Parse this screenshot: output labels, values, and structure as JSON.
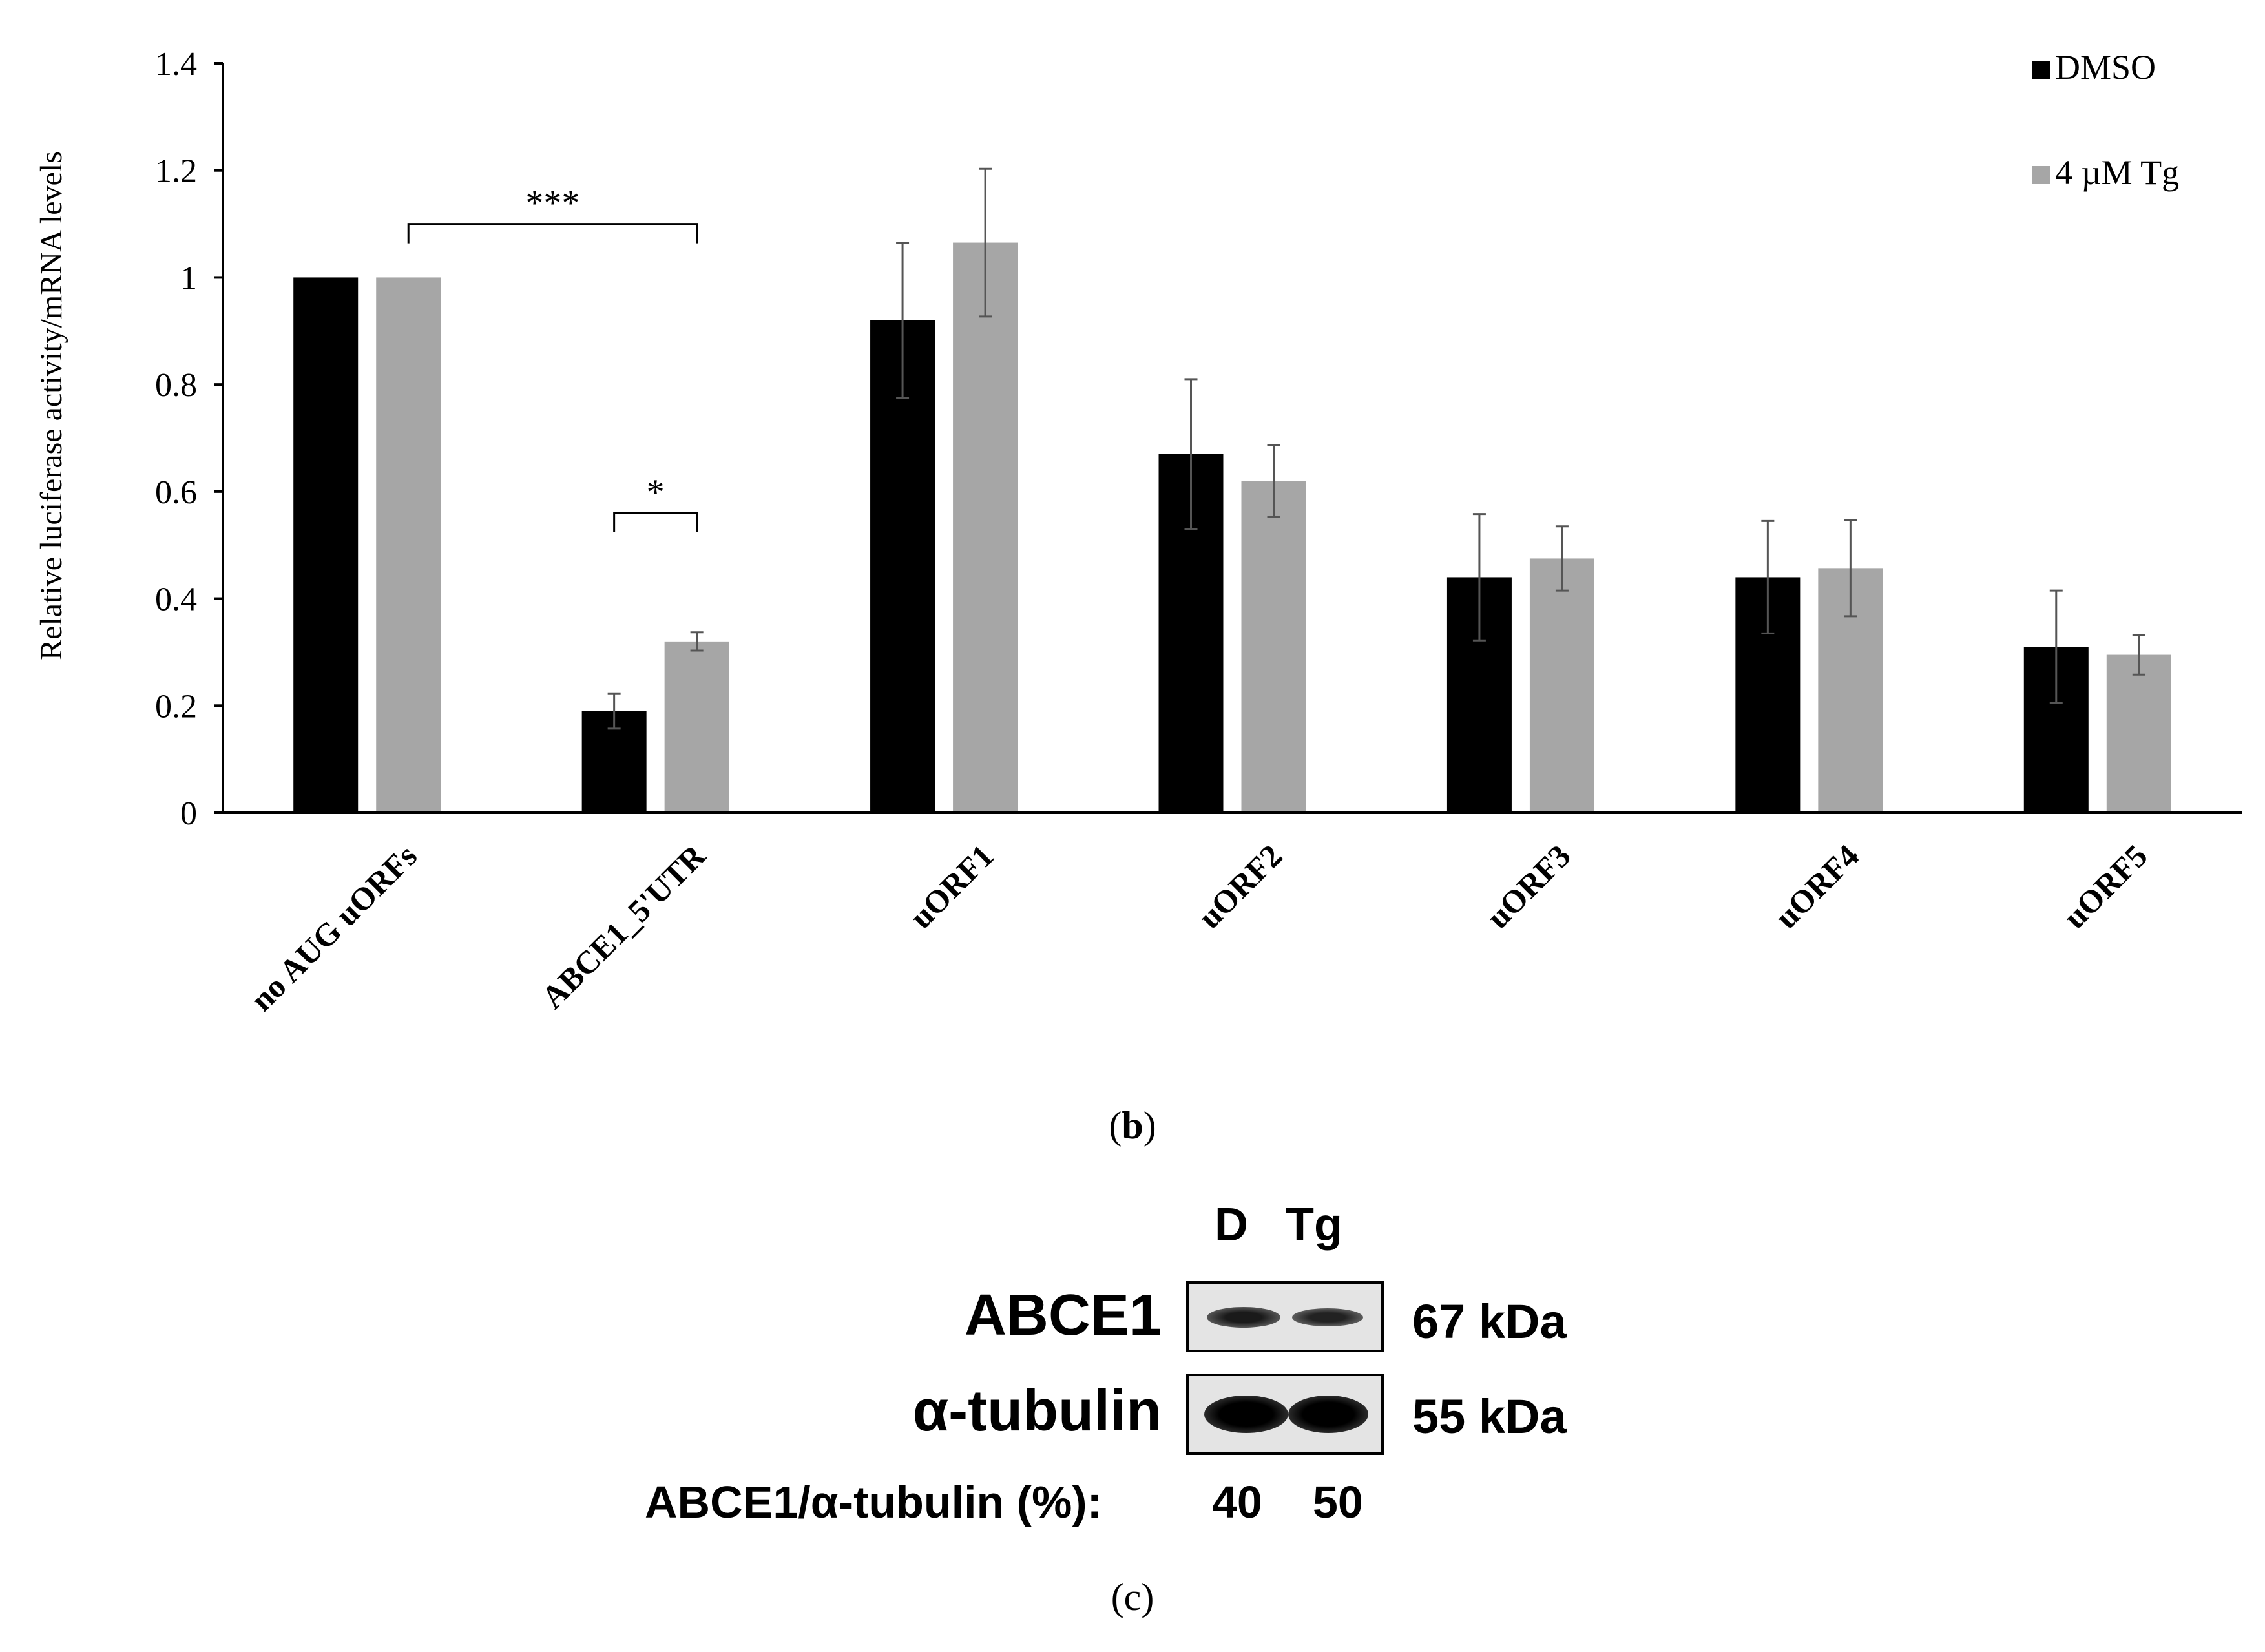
{
  "chart_data": {
    "type": "bar",
    "title": "",
    "xlabel": "",
    "ylabel": "Relative luciferase activity/mRNA levels",
    "ylim": [
      0,
      1.4
    ],
    "yticks": [
      "0",
      "0.2",
      "0.4",
      "0.6",
      "0.8",
      "1",
      "1.2",
      "1.4"
    ],
    "categories": [
      "no AUG uORFs",
      "ABCE1_5'UTR",
      "uORF1",
      "uORF2",
      "uORF3",
      "uORF4",
      "uORF5"
    ],
    "series": [
      {
        "name": "DMSO",
        "color": "#000000",
        "values": [
          1.0,
          0.19,
          0.92,
          0.67,
          0.44,
          0.44,
          0.31
        ],
        "errors": [
          0.0,
          0.033,
          0.145,
          0.14,
          0.118,
          0.105,
          0.105
        ]
      },
      {
        "name": "4 µM Tg",
        "color": "#a6a6a6",
        "values": [
          1.0,
          0.32,
          1.065,
          0.62,
          0.475,
          0.457,
          0.295
        ],
        "errors": [
          0.0,
          0.017,
          0.138,
          0.067,
          0.06,
          0.09,
          0.037
        ]
      }
    ],
    "legend_position": "top-right",
    "significance": [
      {
        "label": "***",
        "y": 1.1
      },
      {
        "label": "*",
        "y": 0.56
      }
    ]
  },
  "captions": {
    "b": "b",
    "c": "c"
  },
  "blot": {
    "lane_labels": [
      "D",
      "Tg"
    ],
    "rows": [
      {
        "protein": "ABCE1",
        "size": "67 kDa"
      },
      {
        "protein": "α-tubulin",
        "size": "55 kDa"
      }
    ],
    "ratio_label": "ABCE1/α-tubulin (%):",
    "ratio_values": [
      "40",
      "50"
    ]
  }
}
